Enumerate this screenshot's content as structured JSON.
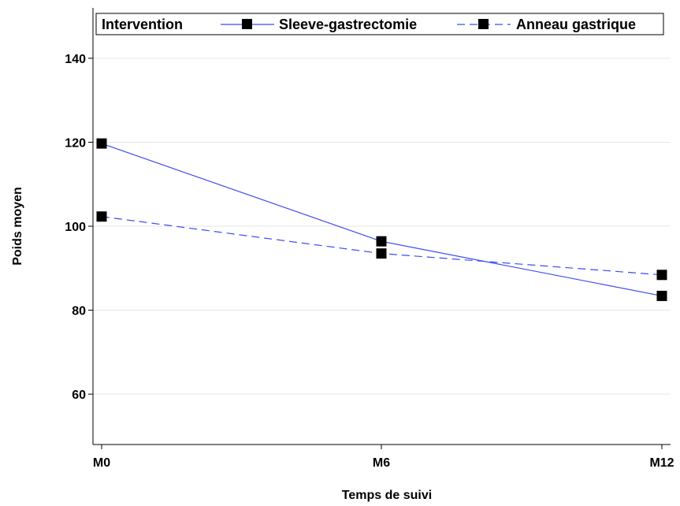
{
  "chart_data": {
    "type": "line",
    "title": "",
    "xlabel": "Temps de suivi",
    "ylabel": "Poids moyen",
    "categories": [
      "M0",
      "M6",
      "M12"
    ],
    "ylim": [
      48,
      152
    ],
    "yticks": [
      60,
      80,
      100,
      120,
      140
    ],
    "grid": true,
    "legend": {
      "title": "Intervention",
      "position": "top"
    },
    "series": [
      {
        "name": "Sleeve-gastrectomie",
        "values": [
          119.7,
          96.4,
          83.4
        ],
        "color": "#3b4cf0",
        "line_style": "solid",
        "marker": "square",
        "marker_color": "#000000"
      },
      {
        "name": "Anneau gastrique",
        "values": [
          102.3,
          93.5,
          88.4
        ],
        "color": "#3b4cf0",
        "line_style": "dashed",
        "marker": "square",
        "marker_color": "#000000"
      }
    ]
  }
}
